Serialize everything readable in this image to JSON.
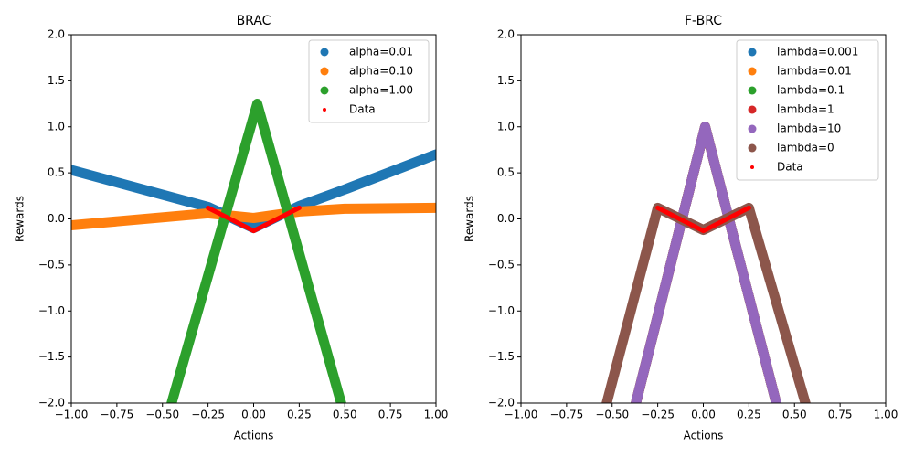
{
  "chart_data": [
    {
      "type": "line",
      "title": "BRAC",
      "x_label": "Actions",
      "y_label": "Rewards",
      "xlim": [
        -1,
        1
      ],
      "ylim": [
        -2,
        2
      ],
      "xticks": [
        {
          "value": -1,
          "label": "−1.00"
        },
        {
          "value": -0.75,
          "label": "−0.75"
        },
        {
          "value": -0.5,
          "label": "−0.50"
        },
        {
          "value": -0.25,
          "label": "−0.25"
        },
        {
          "value": 0,
          "label": "0.00"
        },
        {
          "value": 0.25,
          "label": "0.25"
        },
        {
          "value": 0.5,
          "label": "0.50"
        },
        {
          "value": 0.75,
          "label": "0.75"
        },
        {
          "value": 1,
          "label": "1.00"
        }
      ],
      "yticks": [
        {
          "value": -2,
          "label": "−2.0"
        },
        {
          "value": -1.5,
          "label": "−1.5"
        },
        {
          "value": -1,
          "label": "−1.0"
        },
        {
          "value": -0.5,
          "label": "−0.5"
        },
        {
          "value": 0,
          "label": "0.0"
        },
        {
          "value": 0.5,
          "label": "0.5"
        },
        {
          "value": 1,
          "label": "1.0"
        },
        {
          "value": 1.5,
          "label": "1.5"
        },
        {
          "value": 2,
          "label": "2.0"
        }
      ],
      "legend": "upper right",
      "series": [
        {
          "name": "alpha=0.01",
          "color": "#1f77b4",
          "size": 11,
          "x": [
            -1,
            -0.25,
            0,
            0.25,
            0.5,
            1
          ],
          "values": [
            0.53,
            0.13,
            -0.1,
            0.14,
            0.32,
            0.7
          ]
        },
        {
          "name": "alpha=0.10",
          "color": "#ff7f0e",
          "size": 11,
          "x": [
            -1,
            -0.25,
            0,
            0.25,
            0.5,
            1
          ],
          "values": [
            -0.07,
            0.06,
            0.01,
            0.08,
            0.11,
            0.12
          ]
        },
        {
          "name": "alpha=1.00",
          "color": "#2ca02c",
          "size": 11,
          "x": [
            -0.45,
            0.02,
            0.48
          ],
          "values": [
            -2,
            1.25,
            -2
          ]
        },
        {
          "name": "Data",
          "color": "#ff0000",
          "size": 5,
          "x": [
            -0.25,
            0,
            0.25
          ],
          "values": [
            0.12,
            -0.13,
            0.12
          ]
        }
      ]
    },
    {
      "type": "line",
      "title": "F-BRC",
      "x_label": "Actions",
      "y_label": "Rewards",
      "xlim": [
        -1,
        1
      ],
      "ylim": [
        -2,
        2
      ],
      "xticks": [
        {
          "value": -1,
          "label": "−1.00"
        },
        {
          "value": -0.75,
          "label": "−0.75"
        },
        {
          "value": -0.5,
          "label": "−0.50"
        },
        {
          "value": -0.25,
          "label": "−0.25"
        },
        {
          "value": 0,
          "label": "0.00"
        },
        {
          "value": 0.25,
          "label": "0.25"
        },
        {
          "value": 0.5,
          "label": "0.50"
        },
        {
          "value": 0.75,
          "label": "0.75"
        },
        {
          "value": 1,
          "label": "1.00"
        }
      ],
      "yticks": [
        {
          "value": -2,
          "label": "−2.0"
        },
        {
          "value": -1.5,
          "label": "−1.5"
        },
        {
          "value": -1,
          "label": "−1.0"
        },
        {
          "value": -0.5,
          "label": "−0.5"
        },
        {
          "value": 0,
          "label": "0.0"
        },
        {
          "value": 0.5,
          "label": "0.5"
        },
        {
          "value": 1,
          "label": "1.0"
        },
        {
          "value": 1.5,
          "label": "1.5"
        },
        {
          "value": 2,
          "label": "2.0"
        }
      ],
      "legend": "upper right",
      "series": [
        {
          "name": "lambda=0.001",
          "color": "#1f77b4",
          "size": 11,
          "x": [
            -0.37,
            0.01,
            0.4
          ],
          "values": [
            -2,
            1.0,
            -2
          ]
        },
        {
          "name": "lambda=0.01",
          "color": "#ff7f0e",
          "size": 11,
          "x": [
            -0.37,
            0.01,
            0.4
          ],
          "values": [
            -2,
            1.0,
            -2
          ]
        },
        {
          "name": "lambda=0.1",
          "color": "#2ca02c",
          "size": 11,
          "x": [
            -0.37,
            0.01,
            0.4
          ],
          "values": [
            -2,
            1.0,
            -2
          ]
        },
        {
          "name": "lambda=1",
          "color": "#d62728",
          "size": 11,
          "x": [
            -0.37,
            0.01,
            0.4
          ],
          "values": [
            -2,
            1.0,
            -2
          ]
        },
        {
          "name": "lambda=10",
          "color": "#9467bd",
          "size": 11,
          "x": [
            -0.37,
            0.01,
            0.4
          ],
          "values": [
            -2,
            1.0,
            -2
          ]
        },
        {
          "name": "lambda=0",
          "color": "#8c564b",
          "size": 11,
          "x": [
            -0.53,
            -0.25,
            0,
            0.25,
            0.56
          ],
          "values": [
            -2,
            0.12,
            -0.12,
            0.12,
            -2
          ]
        },
        {
          "name": "Data",
          "color": "#ff0000",
          "size": 5,
          "x": [
            -0.25,
            0,
            0.25
          ],
          "values": [
            0.12,
            -0.13,
            0.12
          ]
        }
      ]
    }
  ]
}
